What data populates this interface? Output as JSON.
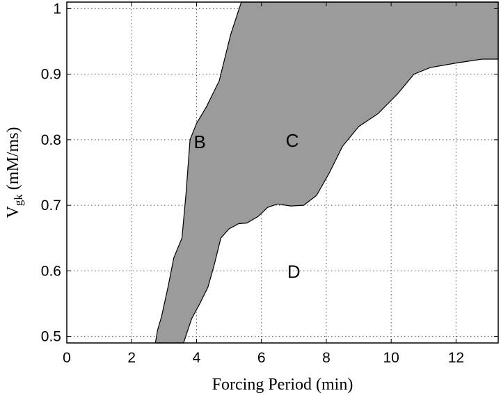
{
  "chart_data": {
    "type": "area",
    "xlabel": "Forcing Period (min)",
    "ylabel": {
      "main": "V",
      "sub": "gk",
      "units": " (mM/ms)"
    },
    "xlim": [
      0,
      13.3
    ],
    "ylim": [
      0.49,
      1.01
    ],
    "x_ticks": [
      0,
      2,
      4,
      6,
      8,
      10,
      12
    ],
    "y_ticks": [
      0.5,
      0.6,
      0.7,
      0.8,
      0.9,
      1
    ],
    "x_tick_labels": [
      "0",
      "2",
      "4",
      "6",
      "8",
      "10",
      "12"
    ],
    "y_tick_labels": [
      "0.5",
      "0.6",
      "0.7",
      "0.8",
      "0.9",
      "1"
    ],
    "grid": true,
    "region_fill_color": "#9b9b9b",
    "region_left_boundary": [
      {
        "x": 2.73,
        "y": 0.49
      },
      {
        "x": 2.8,
        "y": 0.51
      },
      {
        "x": 2.92,
        "y": 0.53
      },
      {
        "x": 3.12,
        "y": 0.575
      },
      {
        "x": 3.3,
        "y": 0.62
      },
      {
        "x": 3.55,
        "y": 0.65
      },
      {
        "x": 3.68,
        "y": 0.72
      },
      {
        "x": 3.8,
        "y": 0.8
      },
      {
        "x": 4.0,
        "y": 0.825
      },
      {
        "x": 4.3,
        "y": 0.85
      },
      {
        "x": 4.7,
        "y": 0.89
      },
      {
        "x": 5.05,
        "y": 0.96
      },
      {
        "x": 5.38,
        "y": 1.01
      }
    ],
    "region_right_boundary": [
      {
        "x": 13.3,
        "y": 0.923
      },
      {
        "x": 12.8,
        "y": 0.923
      },
      {
        "x": 12.0,
        "y": 0.917
      },
      {
        "x": 11.2,
        "y": 0.91
      },
      {
        "x": 10.7,
        "y": 0.9
      },
      {
        "x": 10.2,
        "y": 0.87
      },
      {
        "x": 9.6,
        "y": 0.84
      },
      {
        "x": 9.0,
        "y": 0.82
      },
      {
        "x": 8.5,
        "y": 0.79
      },
      {
        "x": 8.1,
        "y": 0.75
      },
      {
        "x": 7.7,
        "y": 0.715
      },
      {
        "x": 7.3,
        "y": 0.7
      },
      {
        "x": 6.9,
        "y": 0.699
      },
      {
        "x": 6.5,
        "y": 0.702
      },
      {
        "x": 6.2,
        "y": 0.697
      },
      {
        "x": 5.9,
        "y": 0.683
      },
      {
        "x": 5.55,
        "y": 0.673
      },
      {
        "x": 5.3,
        "y": 0.672
      },
      {
        "x": 5.0,
        "y": 0.664
      },
      {
        "x": 4.75,
        "y": 0.65
      },
      {
        "x": 4.55,
        "y": 0.61
      },
      {
        "x": 4.35,
        "y": 0.575
      },
      {
        "x": 4.1,
        "y": 0.55
      },
      {
        "x": 3.85,
        "y": 0.527
      },
      {
        "x": 3.72,
        "y": 0.508
      },
      {
        "x": 3.6,
        "y": 0.49
      }
    ],
    "annotations": [
      {
        "text": "B",
        "x": 4.1,
        "y": 0.798
      },
      {
        "text": "C",
        "x": 6.95,
        "y": 0.8
      },
      {
        "text": "D",
        "x": 7.0,
        "y": 0.6
      }
    ]
  }
}
